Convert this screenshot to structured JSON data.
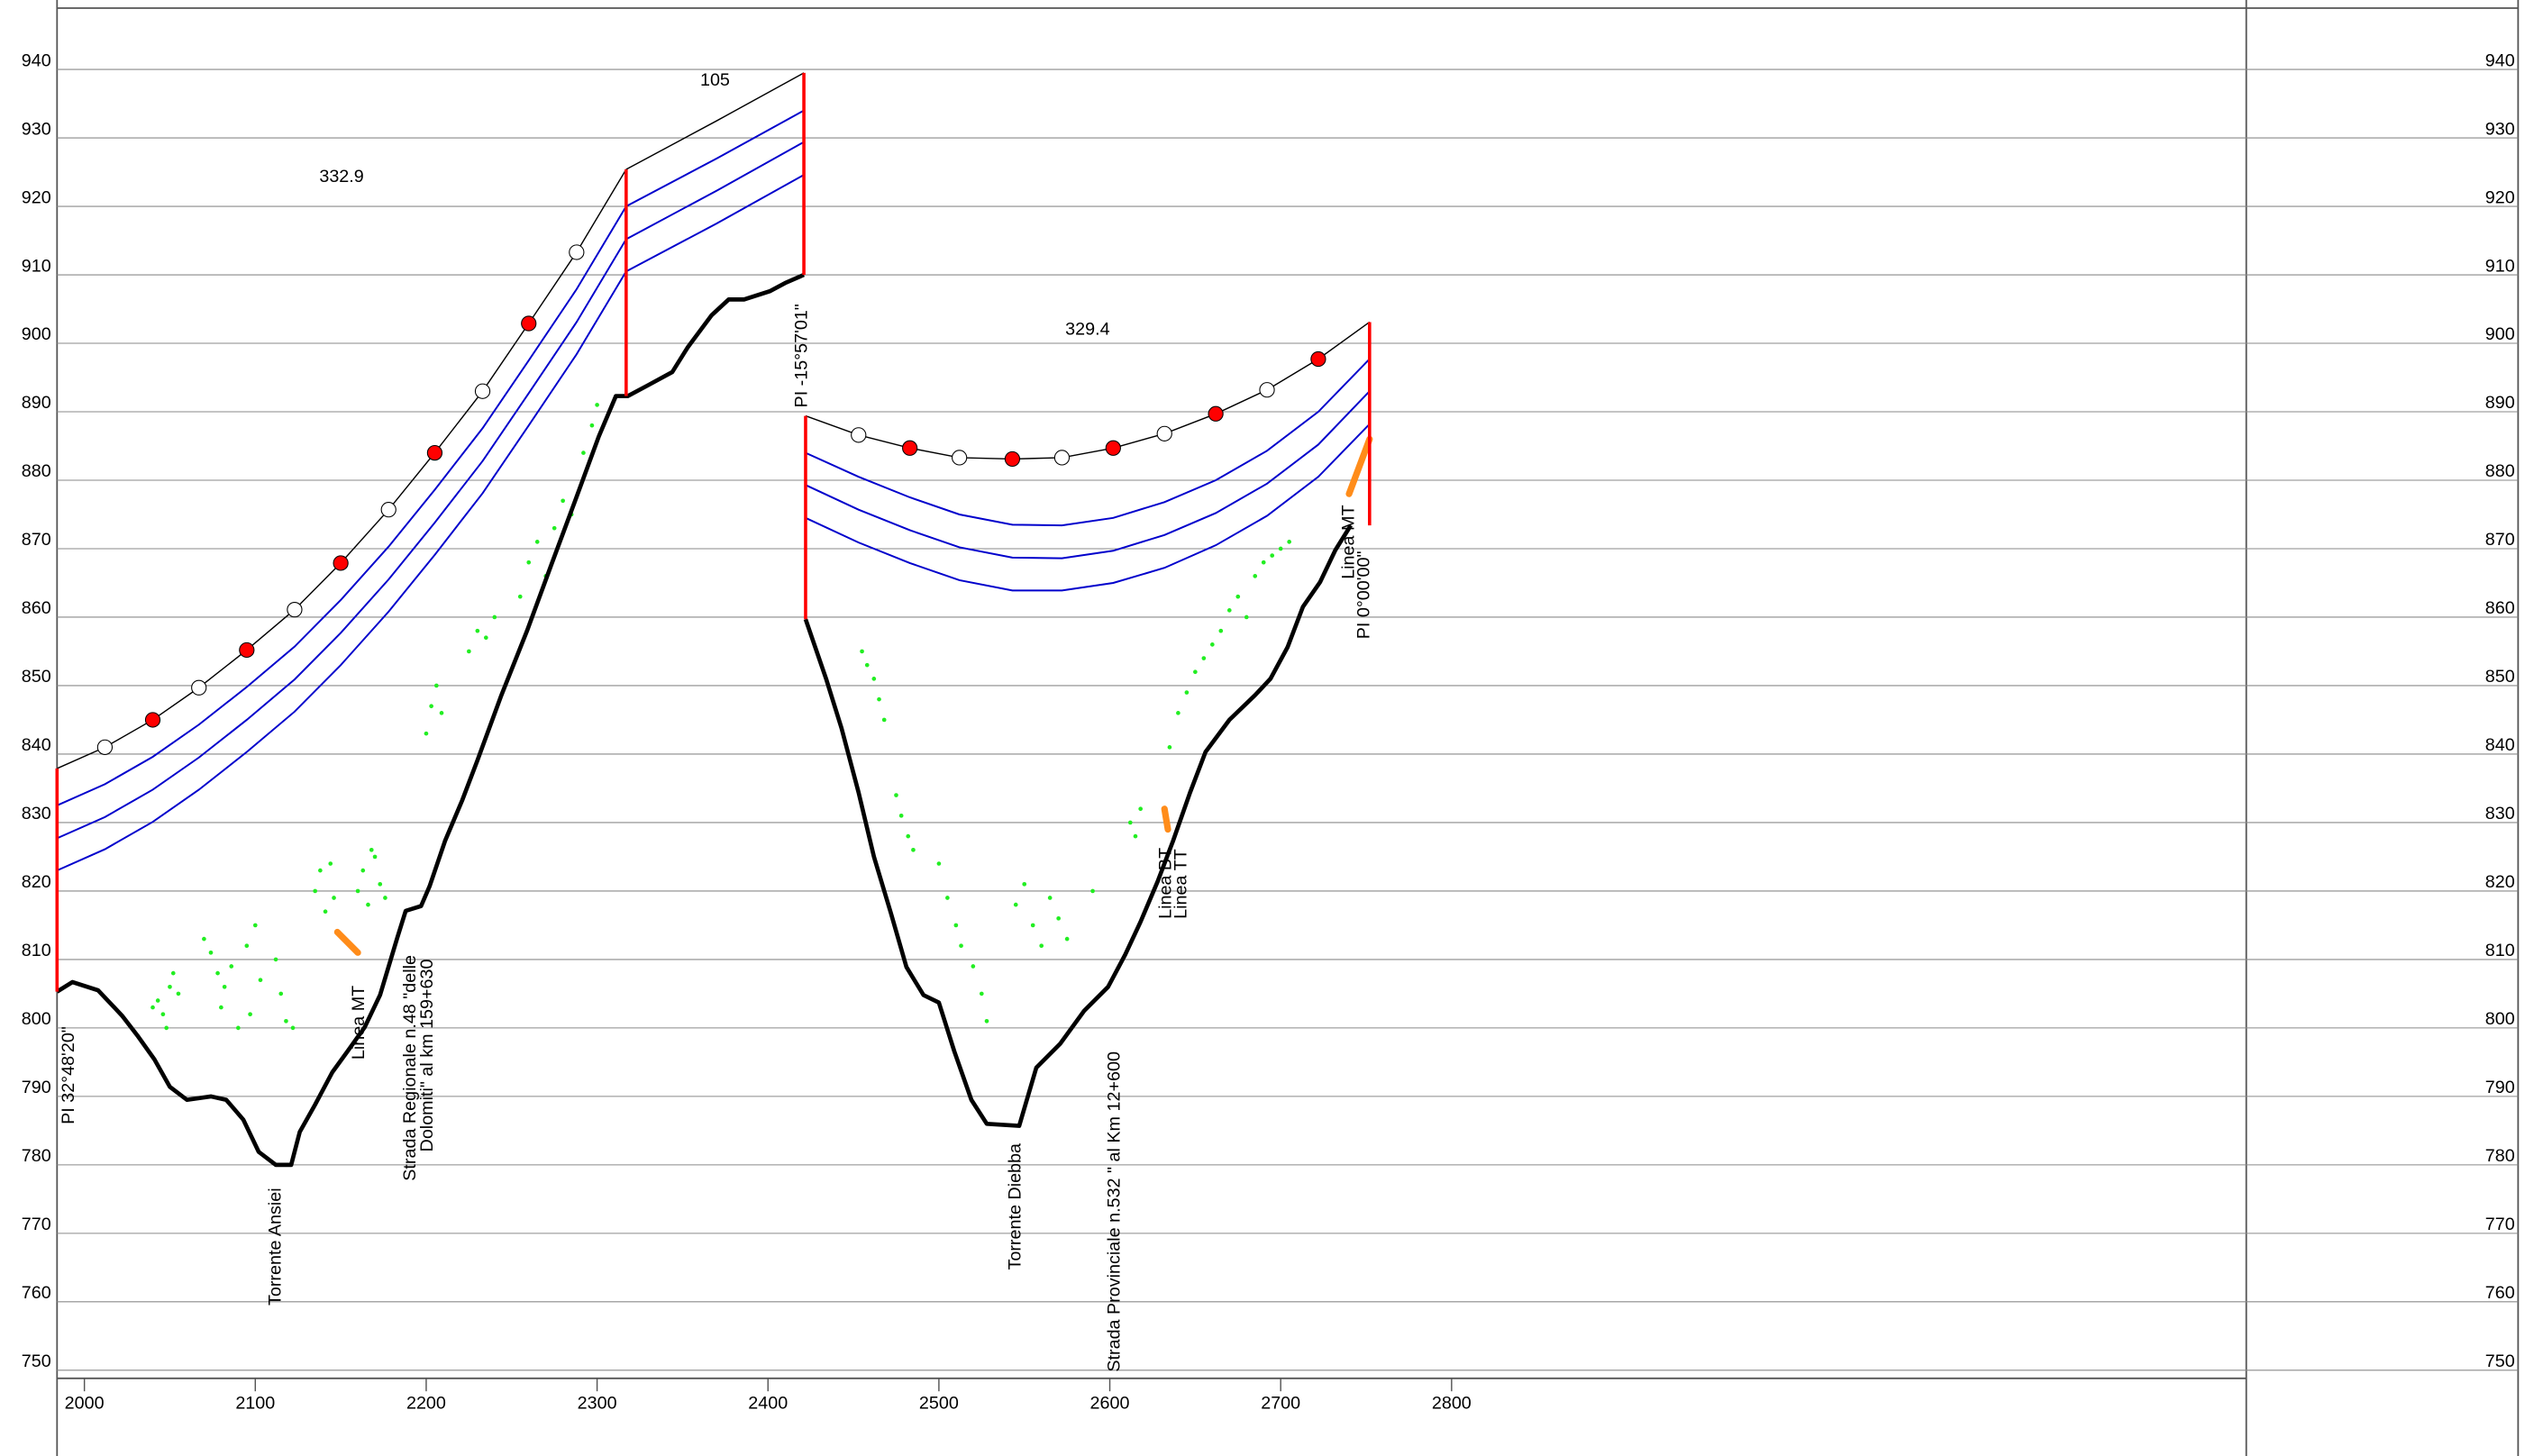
{
  "chart_data": {
    "type": "profile",
    "xlim": [
      1984,
      3265
    ],
    "ylim": [
      750,
      950
    ],
    "xticks": [
      2000,
      2100,
      2200,
      2300,
      2400,
      2500,
      2600,
      2700,
      2800
    ],
    "yticks": [
      750,
      760,
      770,
      780,
      790,
      800,
      810,
      820,
      830,
      840,
      850,
      860,
      870,
      880,
      890,
      900,
      910,
      920,
      930,
      940
    ],
    "grid": true,
    "terrain": {
      "color": "#000000",
      "x": [
        1984,
        1993,
        2008,
        2022,
        2031,
        2041,
        2050,
        2060,
        2074,
        2083,
        2093,
        2102,
        2112,
        2121,
        2126,
        2135,
        2145,
        2154,
        2164,
        2173,
        2183,
        2188,
        2197,
        2202,
        2211,
        2221,
        2230,
        2244,
        2259,
        2273,
        2287,
        2301,
        2311,
        2318,
        2330,
        2344,
        2353,
        2367,
        2377,
        2386,
        2401,
        2410,
        2421,
        null,
        2422,
        2434,
        2443,
        2453,
        2462,
        2472,
        2481,
        2491,
        2500,
        2509,
        2519,
        2528,
        2547,
        2557,
        2571,
        2585,
        2599,
        2609,
        2618,
        2628,
        2637,
        2647,
        2656,
        2670,
        2685,
        2694,
        2704,
        2713,
        2723,
        2732,
        2741
      ],
      "y": [
        805.3,
        806.7,
        805.5,
        801.8,
        798.9,
        795.4,
        791.4,
        789.5,
        790,
        789.5,
        786.6,
        781.9,
        780,
        780,
        784.8,
        788.8,
        793.5,
        796.6,
        800.1,
        804.8,
        813.1,
        817.1,
        817.8,
        820.7,
        827.3,
        833.2,
        839.1,
        848.6,
        858,
        867.5,
        876.9,
        886.4,
        892.3,
        892.3,
        893.9,
        895.8,
        899.4,
        904.1,
        906.4,
        906.4,
        907.6,
        908.8,
        910,
        null,
        859.7,
        851,
        843.8,
        834.4,
        825,
        816.7,
        808.9,
        804.8,
        803.7,
        796.6,
        789.5,
        786,
        785.7,
        794.2,
        797.7,
        802.5,
        806,
        810.7,
        815.5,
        821.4,
        827.3,
        834.4,
        840.3,
        845,
        848.6,
        851,
        855.6,
        861.5,
        865.1,
        869.8,
        873.4
      ]
    },
    "conductors": [
      {
        "color": "#000000",
        "x": [
          1984,
          2012,
          2040,
          2067,
          2095,
          2123,
          2150,
          2178,
          2205,
          2233,
          2260,
          2288,
          2317
        ],
        "y": [
          837.9,
          841,
          845,
          849.7,
          855.2,
          861.1,
          867.9,
          875.7,
          884,
          893,
          902.9,
          913.3,
          925.4
        ]
      },
      {
        "color": "#0000cc",
        "x": [
          1984,
          2012,
          2040,
          2067,
          2095,
          2123,
          2150,
          2178,
          2205,
          2233,
          2260,
          2288,
          2317
        ],
        "y": [
          832.5,
          835.6,
          839.6,
          844.3,
          849.8,
          855.7,
          862.5,
          870.3,
          878.6,
          887.6,
          897.5,
          907.9,
          920
        ]
      },
      {
        "color": "#0000cc",
        "x": [
          1984,
          2012,
          2040,
          2067,
          2095,
          2123,
          2150,
          2178,
          2205,
          2233,
          2260,
          2288,
          2317
        ],
        "y": [
          827.7,
          830.8,
          834.8,
          839.5,
          845,
          850.9,
          857.7,
          865.5,
          873.8,
          882.8,
          892.7,
          903.1,
          915.2
        ]
      },
      {
        "color": "#0000cc",
        "x": [
          1984,
          2012,
          2040,
          2067,
          2095,
          2123,
          2150,
          2178,
          2205,
          2233,
          2260,
          2288,
          2317
        ],
        "y": [
          823,
          826.1,
          830.1,
          834.8,
          840.3,
          846.2,
          853,
          860.8,
          869.1,
          878.1,
          888,
          898.4,
          910.5
        ]
      },
      {
        "color": "#000000",
        "x": [
          2317,
          2370,
          2421
        ],
        "y": [
          925.4,
          932.5,
          939.5
        ]
      },
      {
        "color": "#0000cc",
        "x": [
          2317,
          2370,
          2421
        ],
        "y": [
          920,
          927,
          934
        ]
      },
      {
        "color": "#0000cc",
        "x": [
          2317,
          2370,
          2421
        ],
        "y": [
          915.2,
          922.3,
          929.4
        ]
      },
      {
        "color": "#0000cc",
        "x": [
          2317,
          2370,
          2421
        ],
        "y": [
          910.5,
          917.5,
          924.6
        ]
      },
      {
        "color": "#000000",
        "x": [
          2422,
          2453,
          2483,
          2512,
          2543,
          2572,
          2602,
          2632,
          2662,
          2692,
          2722,
          2752
        ],
        "y": [
          889.4,
          886.6,
          884.7,
          883.3,
          883.1,
          883.3,
          884.7,
          886.8,
          889.7,
          893.2,
          897.7,
          903.1
        ]
      },
      {
        "color": "#0000cc",
        "x": [
          2422,
          2453,
          2483,
          2512,
          2543,
          2572,
          2602,
          2632,
          2662,
          2692,
          2722,
          2752
        ],
        "y": [
          884,
          880.5,
          877.5,
          875,
          873.5,
          873.4,
          874.5,
          876.8,
          880,
          884.3,
          890,
          897.7
        ]
      },
      {
        "color": "#0000cc",
        "x": [
          2422,
          2453,
          2483,
          2512,
          2543,
          2572,
          2602,
          2632,
          2662,
          2692,
          2722,
          2752
        ],
        "y": [
          879.3,
          875.7,
          872.7,
          870.2,
          868.7,
          868.6,
          869.7,
          872,
          875.2,
          879.5,
          885.2,
          893
        ]
      },
      {
        "color": "#0000cc",
        "x": [
          2422,
          2453,
          2483,
          2512,
          2543,
          2572,
          2602,
          2632,
          2662,
          2692,
          2722,
          2752
        ],
        "y": [
          874.5,
          870.9,
          867.9,
          865.4,
          863.9,
          863.9,
          865,
          867.2,
          870.5,
          874.8,
          880.5,
          888.2
        ]
      }
    ],
    "supports": {
      "color": "#ff0000",
      "x": [
        1984,
        2317,
        2421,
        2422,
        2752
      ],
      "bottom": [
        805.3,
        892.3,
        910,
        859.7,
        873.4
      ],
      "top": [
        837.9,
        925.4,
        939.5,
        889.4,
        903.1
      ]
    },
    "spans": [
      {
        "length": 332.9,
        "conductor": 0
      },
      {
        "length": 105.0,
        "conductor": 4
      },
      {
        "length": 329.4,
        "conductor": 8
      }
    ],
    "spheres": {
      "x": [
        2012,
        2040,
        2067,
        2095,
        2123,
        2150,
        2178,
        2205,
        2233,
        2260,
        2288,
        2453,
        2483,
        2512,
        2543,
        2572,
        2602,
        2632,
        2662,
        2692,
        2722
      ],
      "y": [
        841,
        845,
        849.7,
        855.2,
        861.1,
        867.9,
        875.7,
        884,
        893,
        902.9,
        913.3,
        886.6,
        884.7,
        883.3,
        883.1,
        883.3,
        884.7,
        886.8,
        889.7,
        893.2,
        897.7
      ],
      "colors": [
        "#ffffff",
        "#ff0000",
        "#ffffff",
        "#ff0000",
        "#ffffff",
        "#ff0000",
        "#ffffff",
        "#ff0000",
        "#ffffff",
        "#ff0000",
        "#ffffff",
        "#ffffff",
        "#ff0000",
        "#ffffff",
        "#ff0000",
        "#ffffff",
        "#ff0000",
        "#ffffff",
        "#ff0000",
        "#ffffff",
        "#ff0000"
      ]
    },
    "vegetation": {
      "color": "#22ee22",
      "x": [
        2040,
        2043,
        2046,
        2050,
        2052,
        2055,
        2048,
        2070,
        2074,
        2078,
        2082,
        2086,
        2080,
        2090,
        2095,
        2100,
        2103,
        2097,
        2115,
        2118,
        2122,
        2112,
        2135,
        2138,
        2141,
        2144,
        2146,
        2160,
        2163,
        2166,
        2170,
        2173,
        2176,
        2168,
        2200,
        2203,
        2206,
        2209,
        2225,
        2230,
        2235,
        2240,
        2255,
        2260,
        2265,
        2270,
        2275,
        2280,
        2285,
        2292,
        2297,
        2300,
        2455,
        2458,
        2462,
        2465,
        2468,
        2475,
        2478,
        2482,
        2485,
        2500,
        2505,
        2510,
        2513,
        2520,
        2525,
        2528,
        2545,
        2550,
        2555,
        2560,
        2565,
        2570,
        2575,
        2590,
        2612,
        2615,
        2618,
        2635,
        2640,
        2645,
        2650,
        2655,
        2660,
        2665,
        2670,
        2675,
        2680,
        2685,
        2690,
        2695,
        2700,
        2705
      ],
      "y": [
        803,
        804,
        802,
        806,
        808,
        805,
        800,
        813,
        811,
        808,
        806,
        809,
        803,
        800,
        812,
        815,
        807,
        802,
        805,
        801,
        800,
        810,
        820,
        823,
        817,
        824,
        819,
        820,
        823,
        818,
        825,
        821,
        819,
        826,
        843,
        847,
        850,
        846,
        855,
        858,
        857,
        860,
        863,
        868,
        871,
        866,
        873,
        877,
        875,
        884,
        888,
        891,
        855,
        853,
        851,
        848,
        845,
        834,
        831,
        828,
        826,
        824,
        819,
        815,
        812,
        809,
        805,
        801,
        818,
        821,
        815,
        812,
        819,
        816,
        813,
        820,
        830,
        828,
        832,
        841,
        846,
        849,
        852,
        854,
        856,
        858,
        861,
        863,
        860,
        866,
        868,
        869,
        870,
        871
      ]
    },
    "crossings": {
      "color": "#ff8c1a",
      "x": [
        2148,
        2160,
        null,
        2632,
        2634,
        null,
        2740,
        2752
      ],
      "y": [
        814,
        811,
        null,
        832,
        829,
        null,
        878,
        886
      ]
    },
    "annotations": [
      {
        "text": "PI 32°48'20\"",
        "x": 1991
      },
      {
        "text": "Torrente Ansiei",
        "x": 2112
      },
      {
        "text": "Linea MT",
        "x": 2161
      },
      {
        "text": "Strada Regionale n.48 \"delle",
        "x": 2191
      },
      {
        "text": "Dolomiti\" al km 159+630",
        "x": 2201
      },
      {
        "text": "PI -15°57'01\"",
        "x": 2420
      },
      {
        "text": "Torrente Diebba",
        "x": 2545
      },
      {
        "text": "Strada Provinciale n.532 \" al Km 12+600",
        "x": 2603
      },
      {
        "text": "Linea BT",
        "x": 2633
      },
      {
        "text": "Linea TT",
        "x": 2642
      },
      {
        "text": "Linea MT",
        "x": 2740
      },
      {
        "text": "PI 0°00'00\"",
        "x": 2749
      }
    ]
  }
}
